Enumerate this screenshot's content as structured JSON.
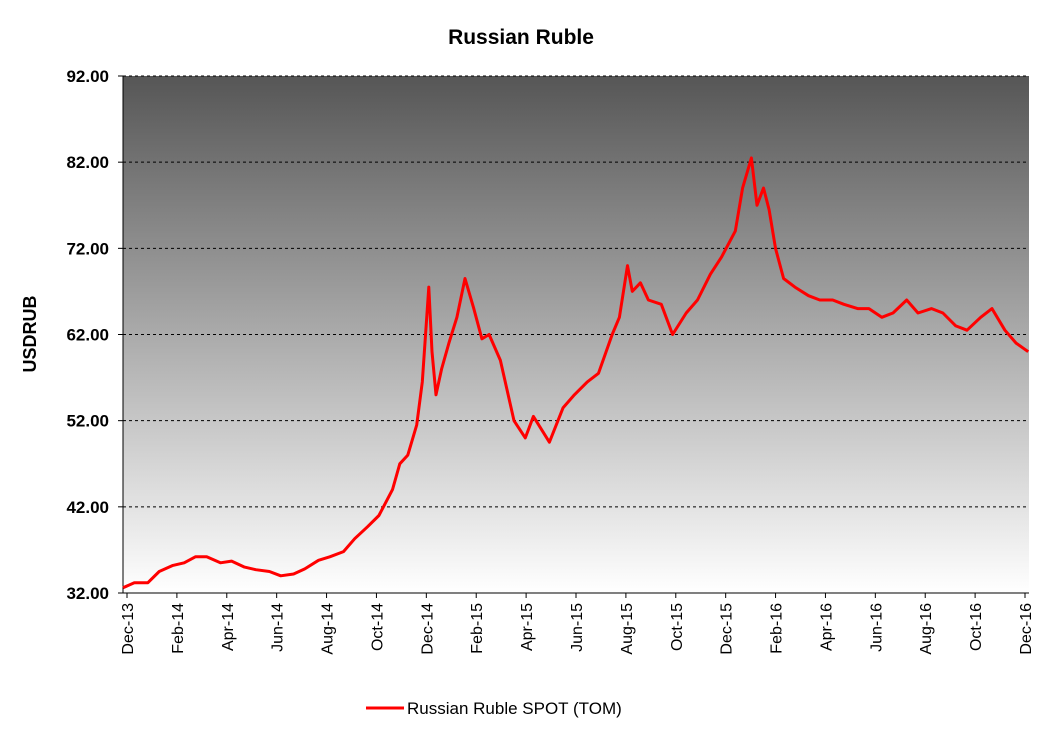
{
  "chart_data": {
    "type": "line",
    "title": "Russian Ruble",
    "xlabel": "",
    "ylabel": "USDRUB",
    "ylim": [
      32,
      92
    ],
    "yticks": [
      32,
      42,
      52,
      62,
      72,
      82,
      92
    ],
    "ytick_labels": [
      "32.00",
      "42.00",
      "52.00",
      "62.00",
      "72.00",
      "82.00",
      "92.00"
    ],
    "xlim": [
      "2013-12-01",
      "2016-12-31"
    ],
    "xtick_labels": [
      "Dec-13",
      "Feb-14",
      "Apr-14",
      "Jun-14",
      "Aug-14",
      "Oct-14",
      "Dec-14",
      "Feb-15",
      "Apr-15",
      "Jun-15",
      "Aug-15",
      "Oct-15",
      "Dec-15",
      "Feb-16",
      "Apr-16",
      "Jun-16",
      "Aug-16",
      "Oct-16",
      "Dec-16"
    ],
    "grid": "horizontal dashed",
    "legend_position": "bottom",
    "colors": {
      "series": "#ff0000",
      "plot_bg_top": "#565656",
      "plot_bg_bottom": "#ffffff",
      "grid": "#000000"
    },
    "series": [
      {
        "name": "Russian Ruble SPOT (TOM)",
        "x": [
          "2013-12-01",
          "2013-12-15",
          "2014-01-01",
          "2014-01-15",
          "2014-02-01",
          "2014-02-15",
          "2014-03-01",
          "2014-03-15",
          "2014-04-01",
          "2014-04-15",
          "2014-05-01",
          "2014-05-15",
          "2014-06-01",
          "2014-06-15",
          "2014-07-01",
          "2014-07-15",
          "2014-08-01",
          "2014-08-15",
          "2014-09-01",
          "2014-09-15",
          "2014-10-01",
          "2014-10-15",
          "2014-11-01",
          "2014-11-10",
          "2014-11-20",
          "2014-12-01",
          "2014-12-08",
          "2014-12-16",
          "2014-12-20",
          "2014-12-25",
          "2015-01-01",
          "2015-01-10",
          "2015-01-20",
          "2015-01-30",
          "2015-02-10",
          "2015-02-20",
          "2015-03-01",
          "2015-03-15",
          "2015-04-01",
          "2015-04-15",
          "2015-04-25",
          "2015-05-05",
          "2015-05-15",
          "2015-06-01",
          "2015-06-15",
          "2015-07-01",
          "2015-07-15",
          "2015-08-01",
          "2015-08-10",
          "2015-08-20",
          "2015-08-26",
          "2015-09-05",
          "2015-09-15",
          "2015-10-01",
          "2015-10-15",
          "2015-11-01",
          "2015-11-15",
          "2015-12-01",
          "2015-12-15",
          "2016-01-01",
          "2016-01-10",
          "2016-01-21",
          "2016-01-28",
          "2016-02-05",
          "2016-02-12",
          "2016-02-20",
          "2016-03-01",
          "2016-03-15",
          "2016-04-01",
          "2016-04-15",
          "2016-05-01",
          "2016-05-15",
          "2016-06-01",
          "2016-06-15",
          "2016-07-01",
          "2016-07-15",
          "2016-08-01",
          "2016-08-15",
          "2016-09-01",
          "2016-09-15",
          "2016-10-01",
          "2016-10-15",
          "2016-11-01",
          "2016-11-15",
          "2016-12-01",
          "2016-12-15",
          "2016-12-30"
        ],
        "values": [
          32.6,
          33.2,
          33.2,
          34.5,
          35.2,
          35.5,
          36.2,
          36.2,
          35.5,
          35.7,
          35.0,
          34.7,
          34.5,
          34.0,
          34.2,
          34.8,
          35.8,
          36.2,
          36.8,
          38.3,
          39.7,
          41.0,
          44.0,
          47.0,
          48.0,
          51.5,
          56.5,
          67.5,
          60.0,
          55.0,
          58.0,
          61.0,
          64.0,
          68.5,
          65.0,
          61.5,
          62.0,
          59.0,
          52.0,
          50.0,
          52.5,
          51.0,
          49.5,
          53.5,
          55.0,
          56.5,
          57.5,
          62.0,
          64.0,
          70.0,
          67.0,
          68.0,
          66.0,
          65.5,
          62.0,
          64.5,
          66.0,
          69.0,
          71.0,
          74.0,
          79.0,
          82.5,
          77.0,
          79.0,
          76.5,
          72.0,
          68.5,
          67.5,
          66.5,
          66.0,
          66.0,
          65.5,
          65.0,
          65.0,
          64.0,
          64.5,
          66.0,
          64.5,
          65.0,
          64.5,
          63.0,
          62.5,
          64.0,
          65.0,
          62.5,
          61.0,
          60.0
        ]
      }
    ]
  }
}
